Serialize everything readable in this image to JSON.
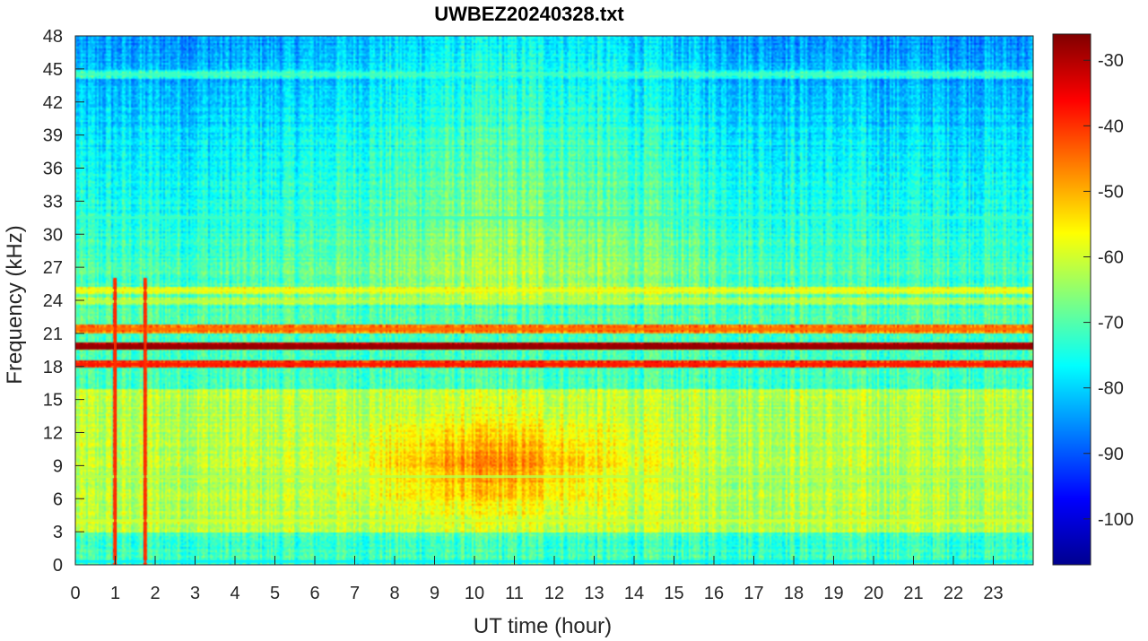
{
  "chart_data": {
    "type": "heatmap",
    "title": "UWBEZ20240328.txt",
    "xlabel": "UT time (hour)",
    "ylabel": "Frequency (kHz)",
    "x_range": [
      0,
      24
    ],
    "y_range": [
      0,
      48
    ],
    "x_ticks": [
      0,
      1,
      2,
      3,
      4,
      5,
      6,
      7,
      8,
      9,
      10,
      11,
      12,
      13,
      14,
      15,
      16,
      17,
      18,
      19,
      20,
      21,
      22,
      23
    ],
    "y_ticks": [
      0,
      3,
      6,
      9,
      12,
      15,
      18,
      21,
      24,
      27,
      30,
      33,
      36,
      39,
      42,
      45,
      48
    ],
    "colorbar": {
      "colormap": "jet",
      "range": [
        -107,
        -26
      ],
      "ticks": [
        -30,
        -40,
        -50,
        -60,
        -70,
        -80,
        -90,
        -100
      ]
    },
    "features": {
      "narrowband_lines": [
        {
          "freq_khz": 19.8,
          "level_db": -28
        },
        {
          "freq_khz": 18.2,
          "level_db": -38
        },
        {
          "freq_khz": 21.4,
          "level_db": -45
        },
        {
          "freq_khz": 24.9,
          "level_db": -58
        },
        {
          "freq_khz": 23.9,
          "level_db": -62
        },
        {
          "freq_khz": 4.0,
          "level_db": -60
        },
        {
          "freq_khz": 8.0,
          "level_db": -62
        },
        {
          "freq_khz": 31.5,
          "level_db": -72
        },
        {
          "freq_khz": 44.5,
          "level_db": -72
        },
        {
          "freq_khz": 0.3,
          "level_db": -78
        }
      ],
      "broadband_peak": {
        "center_hour": 10.5,
        "center_khz": 9.0,
        "level_db": -47
      },
      "impulse_hours": [
        1.0,
        1.75
      ]
    }
  }
}
